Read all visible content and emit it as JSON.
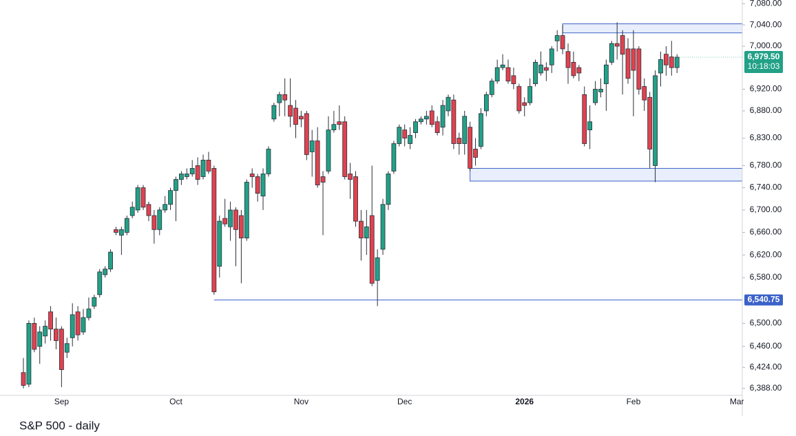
{
  "chart_data": {
    "type": "candlestick",
    "caption": "S&P 500 - daily",
    "log": true,
    "ylim": [
      6376,
      7087
    ],
    "yticks": [
      {
        "value": 6388,
        "label": "6,388.00"
      },
      {
        "value": 6424,
        "label": "6,424.00"
      },
      {
        "value": 6460,
        "label": "6,460.00"
      },
      {
        "value": 6500,
        "label": "6,500.00"
      },
      {
        "value": 6580,
        "label": "6,580.00"
      },
      {
        "value": 6620,
        "label": "6,620.00"
      },
      {
        "value": 6660,
        "label": "6,660.00"
      },
      {
        "value": 6700,
        "label": "6,700.00"
      },
      {
        "value": 6740,
        "label": "6,740.00"
      },
      {
        "value": 6780,
        "label": "6,780.00"
      },
      {
        "value": 6830,
        "label": "6,830.00"
      },
      {
        "value": 6880,
        "label": "6,880.00"
      },
      {
        "value": 6920,
        "label": "6,920.00"
      },
      {
        "value": 7000,
        "label": "7,000.00"
      },
      {
        "value": 7040,
        "label": "7,040.00"
      },
      {
        "value": 7080,
        "label": "7,080.00"
      }
    ],
    "colors": {
      "up": "#22a187",
      "down": "#e0424f",
      "level": "#3a62c9",
      "zone": "#e8eefb"
    },
    "categories": [
      null,
      null,
      null,
      null,
      null,
      null,
      null,
      "Sep",
      null,
      null,
      null,
      null,
      null,
      null,
      null,
      null,
      null,
      null,
      null,
      null,
      null,
      null,
      null,
      null,
      null,
      null,
      null,
      null,
      "Oct",
      null,
      null,
      null,
      null,
      null,
      null,
      null,
      null,
      null,
      null,
      null,
      null,
      null,
      null,
      null,
      null,
      null,
      null,
      null,
      null,
      null,
      null,
      "Nov",
      null,
      null,
      null,
      null,
      null,
      null,
      null,
      null,
      null,
      null,
      null,
      null,
      null,
      null,
      null,
      null,
      null,
      null,
      "Dec",
      null,
      null,
      null,
      null,
      null,
      null,
      null,
      null,
      null,
      null,
      null,
      null,
      null,
      null,
      null,
      null,
      null,
      null,
      null,
      null,
      null,
      "2026",
      null,
      null,
      null,
      null,
      null,
      null,
      null,
      null,
      null,
      null,
      null,
      null,
      null,
      null,
      null,
      null,
      null,
      null,
      null,
      "Feb",
      null,
      null,
      null,
      null,
      null,
      null,
      null,
      null,
      null,
      null,
      null,
      null,
      null,
      null,
      null,
      null,
      null,
      null,
      "Mar"
    ],
    "open": [
      6415,
      6395,
      6500,
      6460,
      6478,
      6520,
      6490,
      6490,
      6450,
      6475,
      6520,
      6485,
      6510,
      6530,
      6550,
      6585,
      6595,
      6665,
      6655,
      6660,
      6690,
      6700,
      6740,
      6710,
      6690,
      6665,
      6700,
      6710,
      6735,
      6755,
      6760,
      6765,
      6780,
      6760,
      6790,
      6775,
      6600,
      6685,
      6670,
      6700,
      6690,
      6650,
      6765,
      6760,
      6725,
      6765,
      6865,
      6895,
      6910,
      6890,
      6885,
      6870,
      6875,
      6805,
      6825,
      6760,
      6770,
      6845,
      6860,
      6860,
      6765,
      6760,
      6680,
      6650,
      6690,
      6575,
      6630,
      6710,
      6770,
      6820,
      6845,
      6820,
      6840,
      6860,
      6865,
      6880,
      6860,
      6850,
      6880,
      6900,
      6830,
      6820,
      6850,
      6810,
      6815,
      6880,
      6910,
      6935,
      6960,
      6960,
      6945,
      6925,
      6895,
      6895,
      6930,
      6950,
      6960,
      6965,
      7010,
      7020,
      6990,
      6970,
      6960,
      6910,
      6845,
      6895,
      6915,
      6930,
      6970,
      7005,
      7020,
      6995,
      6995,
      6995,
      6925,
      6905,
      6780,
      6950,
      6985,
      6980,
      6960,
      null,
      null,
      null,
      null,
      null,
      null,
      null,
      null,
      null,
      null,
      null
    ],
    "high": [
      6440,
      6505,
      6510,
      6495,
      6505,
      6530,
      6510,
      6495,
      6475,
      6535,
      6530,
      6525,
      6545,
      6550,
      6595,
      6600,
      6630,
      6670,
      6670,
      6690,
      6715,
      6745,
      6745,
      6715,
      6700,
      6705,
      6725,
      6740,
      6760,
      6770,
      6775,
      6790,
      6795,
      6800,
      6805,
      6780,
      6690,
      6720,
      6715,
      6705,
      6700,
      6755,
      6775,
      6765,
      6775,
      6815,
      6895,
      6915,
      6940,
      6940,
      6900,
      6880,
      6880,
      6845,
      6850,
      6770,
      6870,
      6880,
      6890,
      6870,
      6785,
      6770,
      6700,
      6700,
      6780,
      6630,
      6720,
      6770,
      6825,
      6855,
      6855,
      6850,
      6865,
      6870,
      6880,
      6890,
      6870,
      6900,
      6910,
      6910,
      6840,
      6880,
      6860,
      6830,
      6885,
      6915,
      6940,
      6975,
      6985,
      6975,
      6960,
      6930,
      6905,
      6940,
      6975,
      6990,
      6970,
      7000,
      7030,
      7040,
      7005,
      6990,
      6965,
      6925,
      6890,
      6935,
      6940,
      6975,
      7010,
      7045,
      7030,
      7015,
      7030,
      7000,
      6940,
      6915,
      6955,
      6990,
      7000,
      7010,
      6985,
      null,
      null,
      null,
      null,
      null,
      null,
      null,
      null,
      null,
      null,
      null
    ],
    "low": [
      6388,
      6390,
      6450,
      6430,
      6465,
      6470,
      6455,
      6390,
      6440,
      6460,
      6470,
      6480,
      6505,
      6525,
      6545,
      6580,
      6590,
      6655,
      6620,
      6655,
      6685,
      6695,
      6700,
      6680,
      6640,
      6655,
      6695,
      6700,
      6680,
      6745,
      6755,
      6760,
      6745,
      6755,
      6765,
      6550,
      6580,
      6670,
      6645,
      6600,
      6570,
      6645,
      6740,
      6715,
      6700,
      6760,
      6860,
      6870,
      6870,
      6850,
      6830,
      6850,
      6790,
      6760,
      6740,
      6655,
      6765,
      6840,
      6845,
      6755,
      6720,
      6670,
      6610,
      6620,
      6565,
      6530,
      6620,
      6700,
      6765,
      6815,
      6815,
      6810,
      6830,
      6855,
      6855,
      6850,
      6835,
      6835,
      6870,
      6810,
      6800,
      6800,
      6770,
      6780,
      6810,
      6870,
      6905,
      6930,
      6955,
      6930,
      6920,
      6875,
      6870,
      6890,
      6925,
      6945,
      6935,
      6950,
      6990,
      6985,
      6930,
      6940,
      6935,
      6815,
      6810,
      6890,
      6905,
      6880,
      6965,
      6975,
      6910,
      6930,
      6870,
      6910,
      6880,
      6775,
      6750,
      6925,
      6945,
      6945,
      6950,
      null,
      null,
      null,
      null,
      null,
      null,
      null,
      null,
      null,
      null,
      null
    ],
    "close": [
      6393,
      6500,
      6455,
      6485,
      6495,
      6490,
      6470,
      6420,
      6465,
      6515,
      6480,
      6510,
      6525,
      6545,
      6590,
      6595,
      6625,
      6660,
      6665,
      6685,
      6705,
      6740,
      6705,
      6690,
      6665,
      6700,
      6710,
      6735,
      6755,
      6765,
      6765,
      6775,
      6755,
      6790,
      6770,
      6555,
      6680,
      6675,
      6700,
      6665,
      6650,
      6750,
      6760,
      6730,
      6765,
      6810,
      6890,
      6910,
      6900,
      6870,
      6855,
      6865,
      6800,
      6825,
      6745,
      6750,
      6845,
      6855,
      6855,
      6760,
      6755,
      6680,
      6650,
      6670,
      6570,
      6615,
      6710,
      6765,
      6820,
      6850,
      6830,
      6835,
      6860,
      6865,
      6870,
      6855,
      6840,
      6890,
      6905,
      6820,
      6820,
      6870,
      6775,
      6795,
      6875,
      6910,
      6935,
      6960,
      6965,
      6935,
      6930,
      6880,
      6890,
      6925,
      6970,
      6965,
      6955,
      6995,
      7020,
      6995,
      6960,
      6945,
      6950,
      6820,
      6860,
      6920,
      6920,
      6965,
      7005,
      7000,
      6985,
      6940,
      6955,
      6920,
      6900,
      6810,
      6945,
      6975,
      6965,
      6960,
      6979.5,
      null,
      null,
      null,
      null,
      null,
      null,
      null,
      null,
      null,
      null,
      null
    ],
    "last_price": {
      "value": 6979.5,
      "label": "6,979.50",
      "timer": "10:18:03"
    },
    "levels": [
      {
        "value": 6540.75,
        "label": "6,540.75",
        "from": 35
      }
    ],
    "zones": [
      {
        "from": 99,
        "high": 7042,
        "low": 7025
      },
      {
        "from": 82,
        "high": 6775,
        "low": 6752
      }
    ]
  }
}
